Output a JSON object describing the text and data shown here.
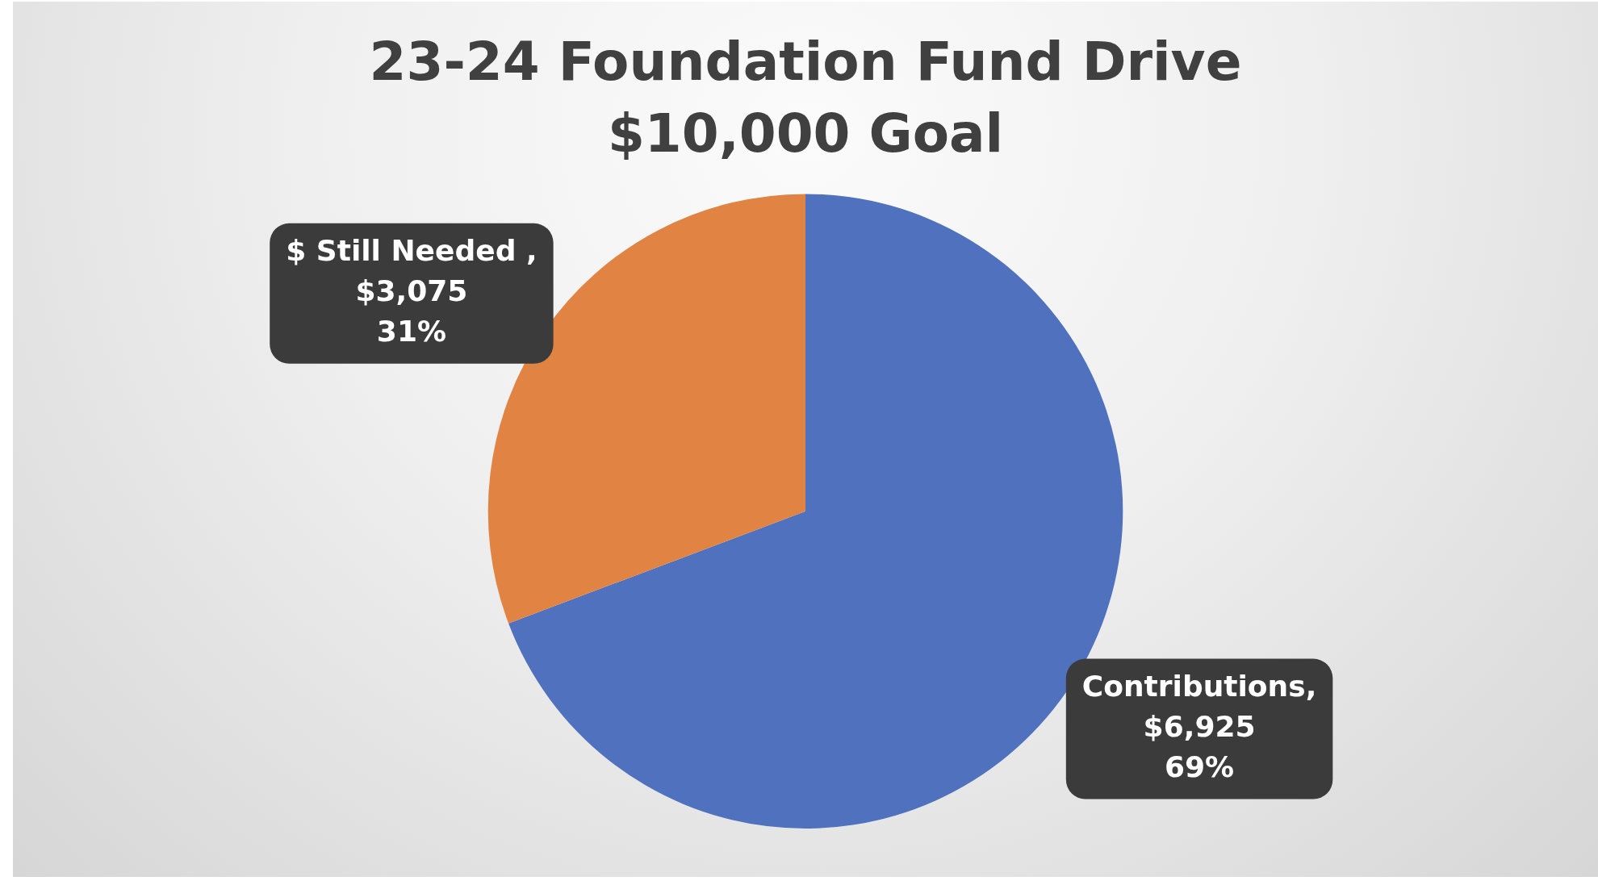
{
  "chart_data": {
    "type": "pie",
    "title": "23-24 Foundation Fund Drive",
    "subtitle": "$10,000 Goal",
    "categories": [
      "Contributions",
      "$ Still Needed"
    ],
    "values": [
      6925,
      3075
    ],
    "colors": [
      "#4f71be",
      "#e18443"
    ],
    "value_labels": [
      ",\n$6,925\n69%",
      " ,\n$3,075\n31%"
    ],
    "legend": false
  }
}
